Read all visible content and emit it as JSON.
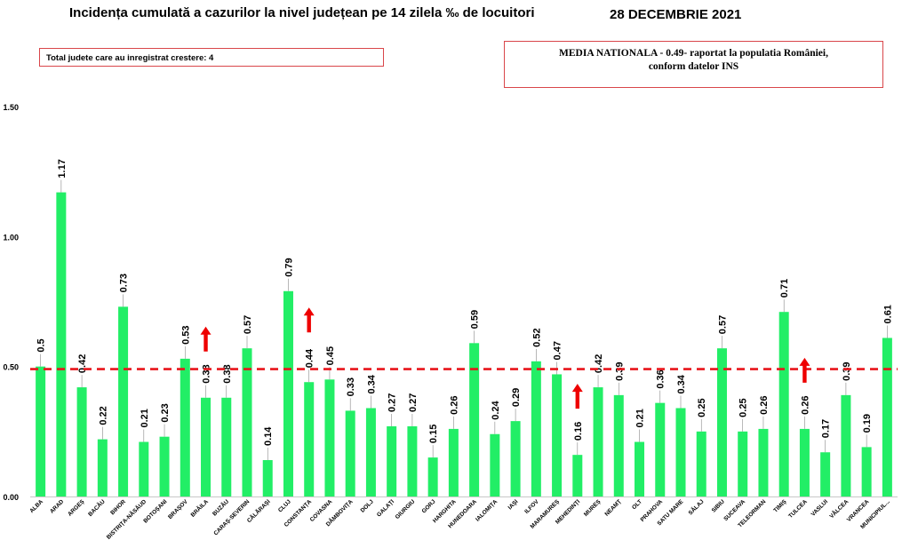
{
  "header": {
    "title": "Incidența cumulată a cazurilor la nivel județean pe 14 zilela ‰ de locuitori",
    "date": "28 DECEMBRIE 2021"
  },
  "notes": {
    "increase_count": "Total judete care au inregistrat crestere: 4",
    "national_line1": "MEDIA NATIONALA  - 0.49-  raportat la populatia României,",
    "national_line2": "conform datelor INS"
  },
  "colors": {
    "bar": "#22ee66",
    "reference": "#e8151b",
    "arrow": "#ee0000"
  },
  "chart_data": {
    "type": "bar",
    "title": "Incidența cumulată a cazurilor la nivel județean pe 14 zilela ‰ de locuitori",
    "xlabel": "",
    "ylabel": "",
    "ylim": [
      0,
      1.5
    ],
    "yticks": [
      "0.00",
      "0.50",
      "1.00",
      "1.50"
    ],
    "grid": false,
    "reference_line": 0.49,
    "categories": [
      "ALBA",
      "ARAD",
      "ARGEȘ",
      "BACĂU",
      "BIHOR",
      "BISTRIȚA-NĂSĂUD",
      "BOTOȘANI",
      "BRAȘOV",
      "BRĂILA",
      "BUZĂU",
      "CARAȘ-SEVERIN",
      "CĂLĂRAȘI",
      "CLUJ",
      "CONSTANȚA",
      "COVASNA",
      "DÂMBOVIȚA",
      "DOLJ",
      "GALAȚI",
      "GIURGIU",
      "GORJ",
      "HARGHITA",
      "HUNEDOARA",
      "IALOMIȚA",
      "IAȘI",
      "ILFOV",
      "MARAMUREȘ",
      "MEHEDINȚI",
      "MUREȘ",
      "NEAMȚ",
      "OLT",
      "PRAHOVA",
      "SATU MARE",
      "SĂLAJ",
      "SIBIU",
      "SUCEAVA",
      "TELEORMAN",
      "TIMIȘ",
      "TULCEA",
      "VASLUI",
      "VÂLCEA",
      "VRANCEA",
      "MUNICIPIUL..."
    ],
    "values": [
      0.5,
      1.17,
      0.42,
      0.22,
      0.73,
      0.21,
      0.23,
      0.53,
      0.38,
      0.38,
      0.57,
      0.14,
      0.79,
      0.44,
      0.45,
      0.33,
      0.34,
      0.27,
      0.27,
      0.15,
      0.26,
      0.59,
      0.24,
      0.29,
      0.52,
      0.47,
      0.16,
      0.42,
      0.39,
      0.21,
      0.36,
      0.34,
      0.25,
      0.57,
      0.25,
      0.26,
      0.71,
      0.26,
      0.17,
      0.39,
      0.19,
      0.61
    ],
    "value_labels": [
      "0.5",
      "1.17",
      "0.42",
      "0.22",
      "0.73",
      "0.21",
      "0.23",
      "0.53",
      "0.38",
      "0.38",
      "0.57",
      "0.14",
      "0.79",
      "0.44",
      "0.45",
      "0.33",
      "0.34",
      "0.27",
      "0.27",
      "0.15",
      "0.26",
      "0.59",
      "0.24",
      "0.29",
      "0.52",
      "0.47",
      "0.16",
      "0.42",
      "0.39",
      "0.21",
      "0.36",
      "0.34",
      "0.25",
      "0.57",
      "0.25",
      "0.26",
      "0.71",
      "0.26",
      "0.17",
      "0.39",
      "0.19",
      "0.61"
    ],
    "increase_markers": [
      "BRĂILA",
      "CONSTANȚA",
      "MEHEDINȚI",
      "TULCEA"
    ]
  }
}
